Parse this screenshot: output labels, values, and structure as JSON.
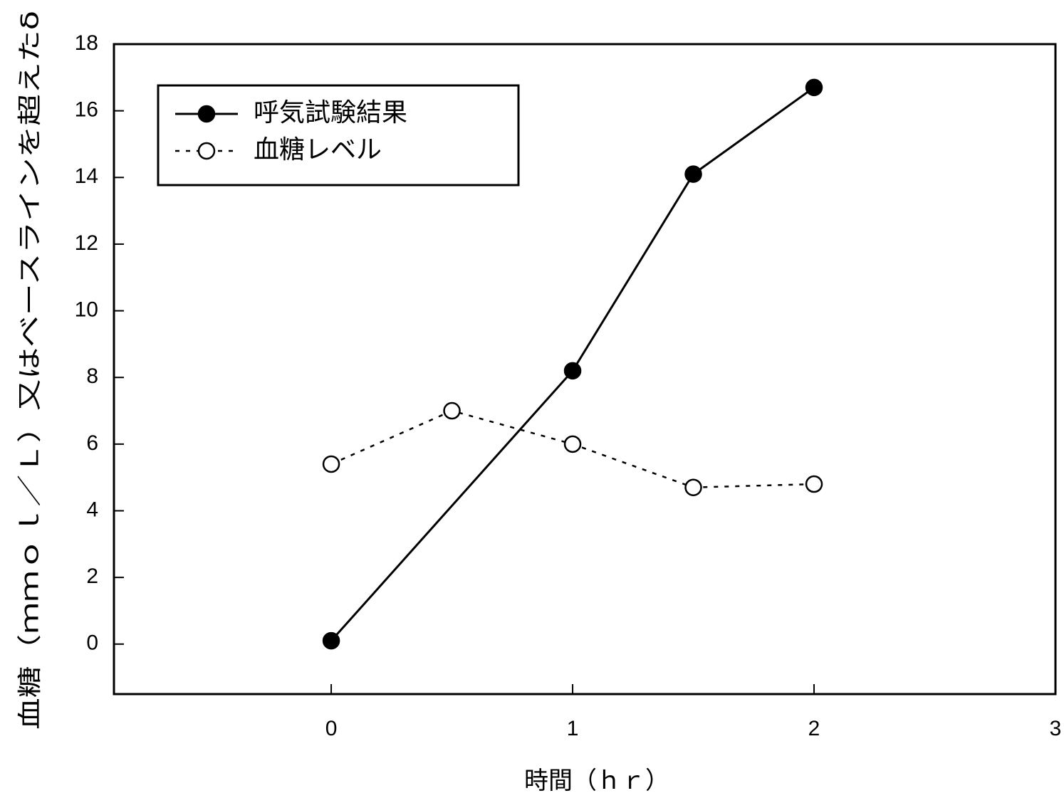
{
  "chart_data": {
    "type": "line",
    "xlabel": "時間（ｈｒ）",
    "ylabel": "血糖（ｍｍｏｌ／Ｌ）又はベースラインを超えたδ",
    "xlim": [
      -0.9,
      3
    ],
    "ylim": [
      -1.5,
      18
    ],
    "x_ticks": [
      "0",
      "1",
      "2",
      "3"
    ],
    "y_ticks": [
      "0",
      "2",
      "4",
      "6",
      "8",
      "10",
      "12",
      "14",
      "16",
      "18"
    ],
    "grid": false,
    "legend_position": "top-left",
    "series": [
      {
        "name": "呼気試験結果",
        "style": "solid line, filled circle markers",
        "x": [
          0,
          1,
          1.5,
          2
        ],
        "y": [
          0.1,
          8.2,
          14.1,
          16.7
        ]
      },
      {
        "name": "血糖レベル",
        "style": "dotted line, open circle markers",
        "x": [
          0,
          0.5,
          1,
          1.5,
          2
        ],
        "y": [
          5.4,
          7.0,
          6.0,
          4.7,
          4.8
        ]
      }
    ]
  }
}
